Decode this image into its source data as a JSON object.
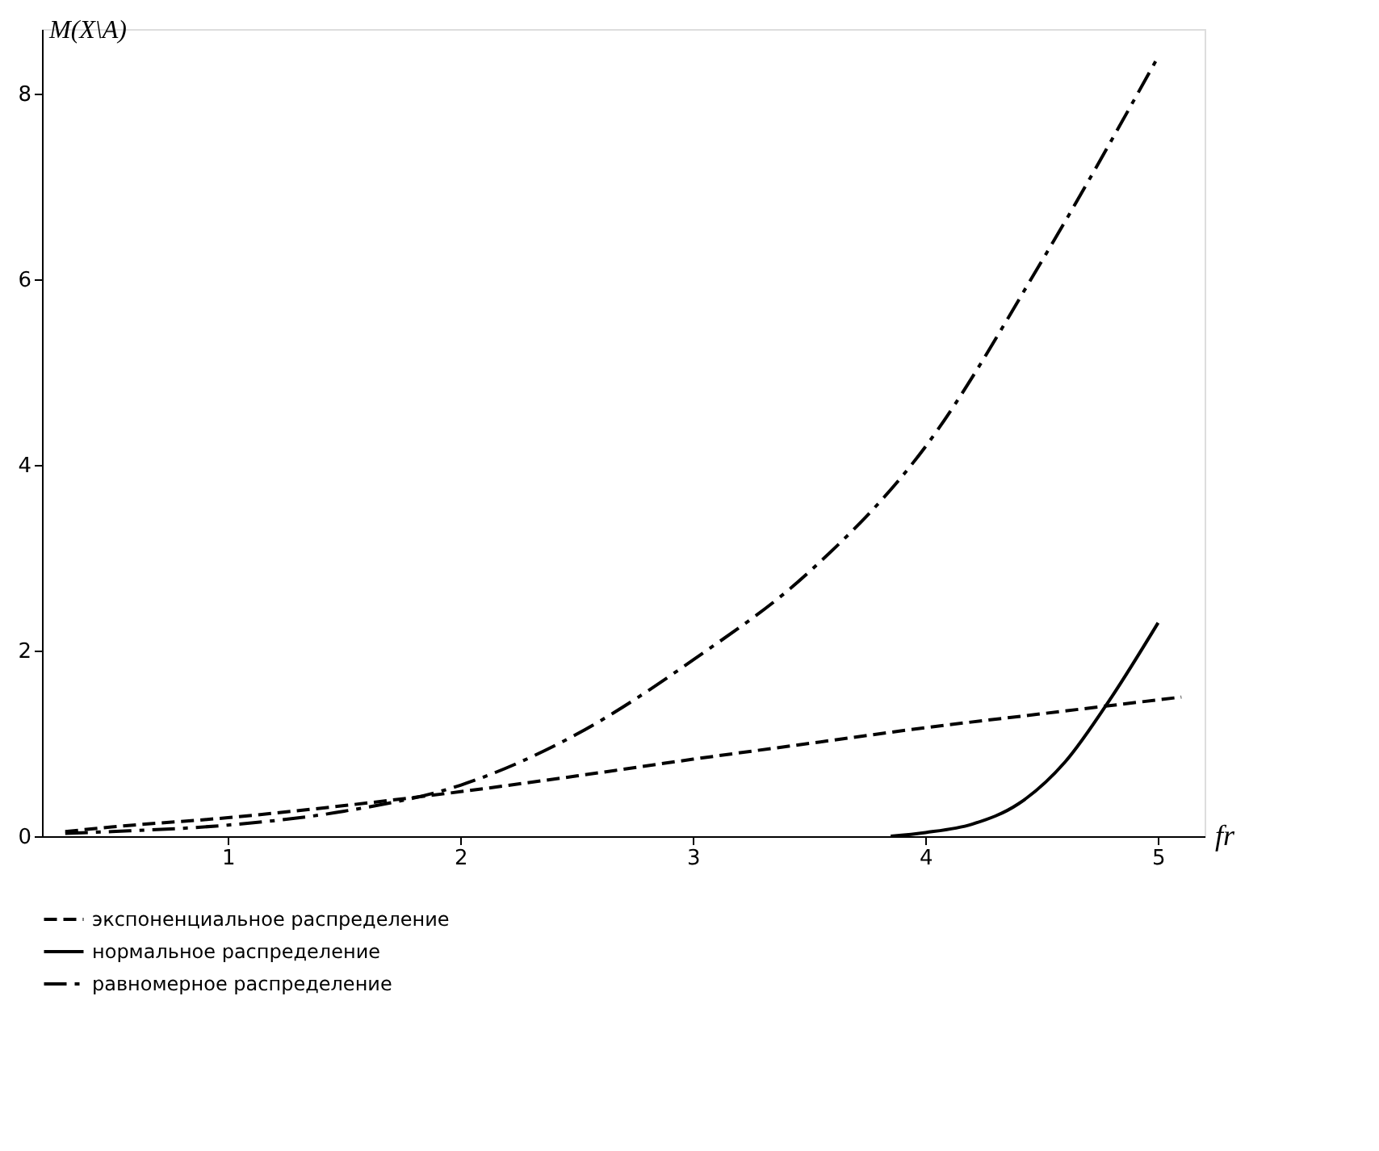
{
  "chart_data": {
    "type": "line",
    "xlabel": "fr",
    "ylabel": "M(X\\A)",
    "xlim": [
      0.2,
      5.2
    ],
    "ylim": [
      0,
      8.7
    ],
    "xticks": [
      1,
      2,
      3,
      4,
      5
    ],
    "yticks": [
      0,
      2,
      4,
      6,
      8
    ],
    "grid": false,
    "legend": "bottom",
    "marker": "none",
    "series": [
      {
        "name": "экспоненциальное распределение",
        "color": "#000000",
        "line_style": "dashed",
        "x": [
          0.3,
          0.5,
          1,
          1.5,
          2,
          2.5,
          3,
          3.5,
          4,
          4.5,
          5.1
        ],
        "values": [
          0.05,
          0.1,
          0.2,
          0.33,
          0.48,
          0.65,
          0.83,
          1.0,
          1.17,
          1.32,
          1.5
        ]
      },
      {
        "name": "нормальное распределение",
        "color": "#000000",
        "line_style": "solid",
        "x": [
          3.85,
          4,
          4.2,
          4.4,
          4.6,
          4.8,
          5
        ],
        "values": [
          0,
          0.04,
          0.13,
          0.35,
          0.8,
          1.5,
          2.3
        ]
      },
      {
        "name": "равномерное распределение",
        "color": "#000000",
        "line_style": "dashdot",
        "x": [
          0.3,
          0.5,
          1,
          1.5,
          2,
          2.5,
          3,
          3.5,
          4,
          4.5,
          5
        ],
        "values": [
          0.03,
          0.05,
          0.12,
          0.27,
          0.55,
          1.1,
          1.9,
          2.85,
          4.2,
          6.2,
          8.4
        ]
      }
    ]
  }
}
